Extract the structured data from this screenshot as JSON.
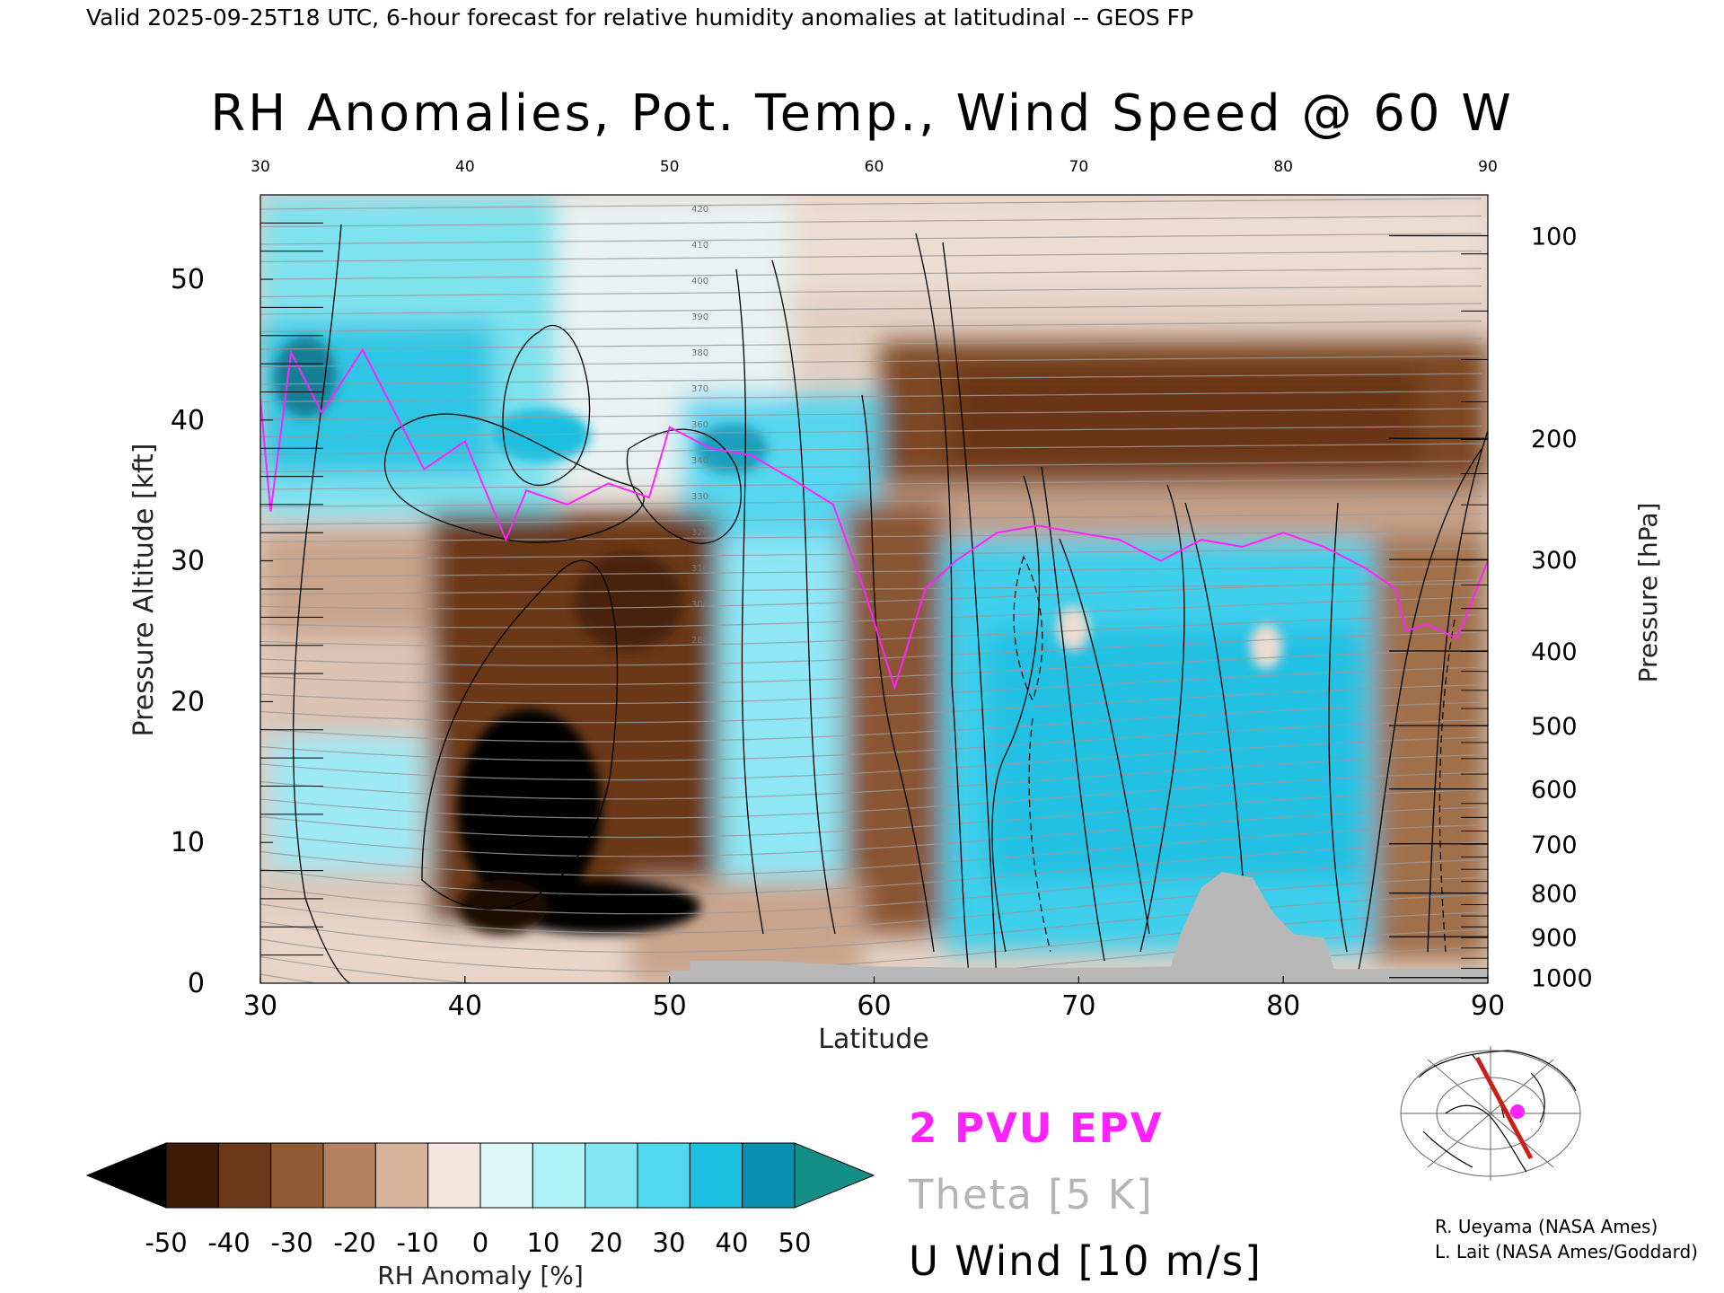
{
  "header": {
    "valid_line": "Valid 2025-09-25T18 UTC, 6-hour forecast for relative humidity anomalies at latitudinal -- GEOS FP"
  },
  "chart_data": {
    "type": "heatmap",
    "title": "RH Anomalies, Pot. Temp., Wind Speed @ 60 W",
    "xlabel": "Latitude",
    "ylabel_left": "Pressure Altitude [kft]",
    "ylabel_right": "Pressure [hPa]",
    "xlim": [
      30,
      90
    ],
    "ylim": [
      0,
      56
    ],
    "x_ticks": [
      "30",
      "40",
      "50",
      "60",
      "70",
      "80",
      "90"
    ],
    "y_ticks_left": [
      {
        "value": 0,
        "label": "0"
      },
      {
        "value": 10,
        "label": "10"
      },
      {
        "value": 20,
        "label": "20"
      },
      {
        "value": 30,
        "label": "30"
      },
      {
        "value": 40,
        "label": "40"
      },
      {
        "value": 50,
        "label": "50"
      }
    ],
    "y_ticks_right": [
      {
        "kft": 0.4,
        "label": "1000"
      },
      {
        "kft": 3.3,
        "label": "900"
      },
      {
        "kft": 6.4,
        "label": "800"
      },
      {
        "kft": 9.9,
        "label": "700"
      },
      {
        "kft": 13.8,
        "label": "600"
      },
      {
        "kft": 18.3,
        "label": "500"
      },
      {
        "kft": 23.6,
        "label": "400"
      },
      {
        "kft": 30.1,
        "label": "300"
      },
      {
        "kft": 38.7,
        "label": "200"
      },
      {
        "kft": 53.1,
        "label": "100"
      }
    ],
    "colorbar": {
      "label": "RH Anomaly [%]",
      "ticks": [
        "-50",
        "-40",
        "-30",
        "-20",
        "-10",
        "0",
        "10",
        "20",
        "30",
        "40",
        "50"
      ],
      "colors": [
        "#000000",
        "#3f1c08",
        "#6b3818",
        "#8f5a34",
        "#b4825f",
        "#d8b39b",
        "#f3e6dc",
        "#dcf7f9",
        "#b0f0f7",
        "#83e6f3",
        "#4fd8ef",
        "#1bbfe0",
        "#0a8fb0",
        "#138f86"
      ],
      "under_color": "#000000",
      "over_color": "#138f86"
    },
    "legend": [
      {
        "label": "2 PVU EPV",
        "color": "#ff22ff"
      },
      {
        "label": "Theta [5 K]",
        "color": "#b4b4b4"
      },
      {
        "label": "U Wind [10 m/s]",
        "color": "#000000"
      }
    ],
    "theta_labels": [
      "420",
      "410",
      "400",
      "390",
      "380",
      "370",
      "360",
      "340",
      "330",
      "320",
      "310",
      "300",
      "280"
    ],
    "terrain_kft": [
      [
        50,
        0
      ],
      [
        50,
        0.9
      ],
      [
        51,
        0.9
      ],
      [
        51,
        1.6
      ],
      [
        55,
        1.6
      ],
      [
        57,
        1.4
      ],
      [
        60,
        1.2
      ],
      [
        65,
        1.1
      ],
      [
        72,
        1.1
      ],
      [
        74.5,
        1.2
      ],
      [
        75,
        3.6
      ],
      [
        76,
        6.8
      ],
      [
        77,
        7.9
      ],
      [
        78.5,
        7.5
      ],
      [
        79.5,
        5.0
      ],
      [
        80.5,
        3.5
      ],
      [
        82,
        3.2
      ],
      [
        82.5,
        1.0
      ],
      [
        90,
        1.0
      ],
      [
        90,
        0
      ]
    ],
    "pvu2_altitude_kft": [
      [
        30,
        41.5
      ],
      [
        30.5,
        33.5
      ],
      [
        31.5,
        44.8
      ],
      [
        33,
        40.5
      ],
      [
        35,
        45.0
      ],
      [
        38,
        36.5
      ],
      [
        40,
        38.5
      ],
      [
        42,
        31.5
      ],
      [
        43,
        35.0
      ],
      [
        45,
        34.0
      ],
      [
        47,
        35.5
      ],
      [
        49,
        34.5
      ],
      [
        50,
        39.5
      ],
      [
        52,
        38.0
      ],
      [
        54,
        37.5
      ],
      [
        56,
        35.8
      ],
      [
        58,
        34.0
      ],
      [
        59.5,
        28.0
      ],
      [
        61,
        21.0
      ],
      [
        62.5,
        28.0
      ],
      [
        64,
        30.0
      ],
      [
        66,
        32.0
      ],
      [
        68,
        32.5
      ],
      [
        70,
        32.0
      ],
      [
        72,
        31.5
      ],
      [
        74,
        30.0
      ],
      [
        76,
        31.5
      ],
      [
        78,
        31.0
      ],
      [
        80,
        32.0
      ],
      [
        82,
        31.0
      ],
      [
        84,
        29.5
      ],
      [
        85.5,
        28.0
      ],
      [
        86,
        25.0
      ],
      [
        87,
        25.5
      ],
      [
        88.5,
        24.5
      ],
      [
        90,
        30.0
      ]
    ],
    "credits": [
      "R. Ueyama (NASA Ames)",
      "L. Lait (NASA Ames/Goddard)"
    ]
  }
}
